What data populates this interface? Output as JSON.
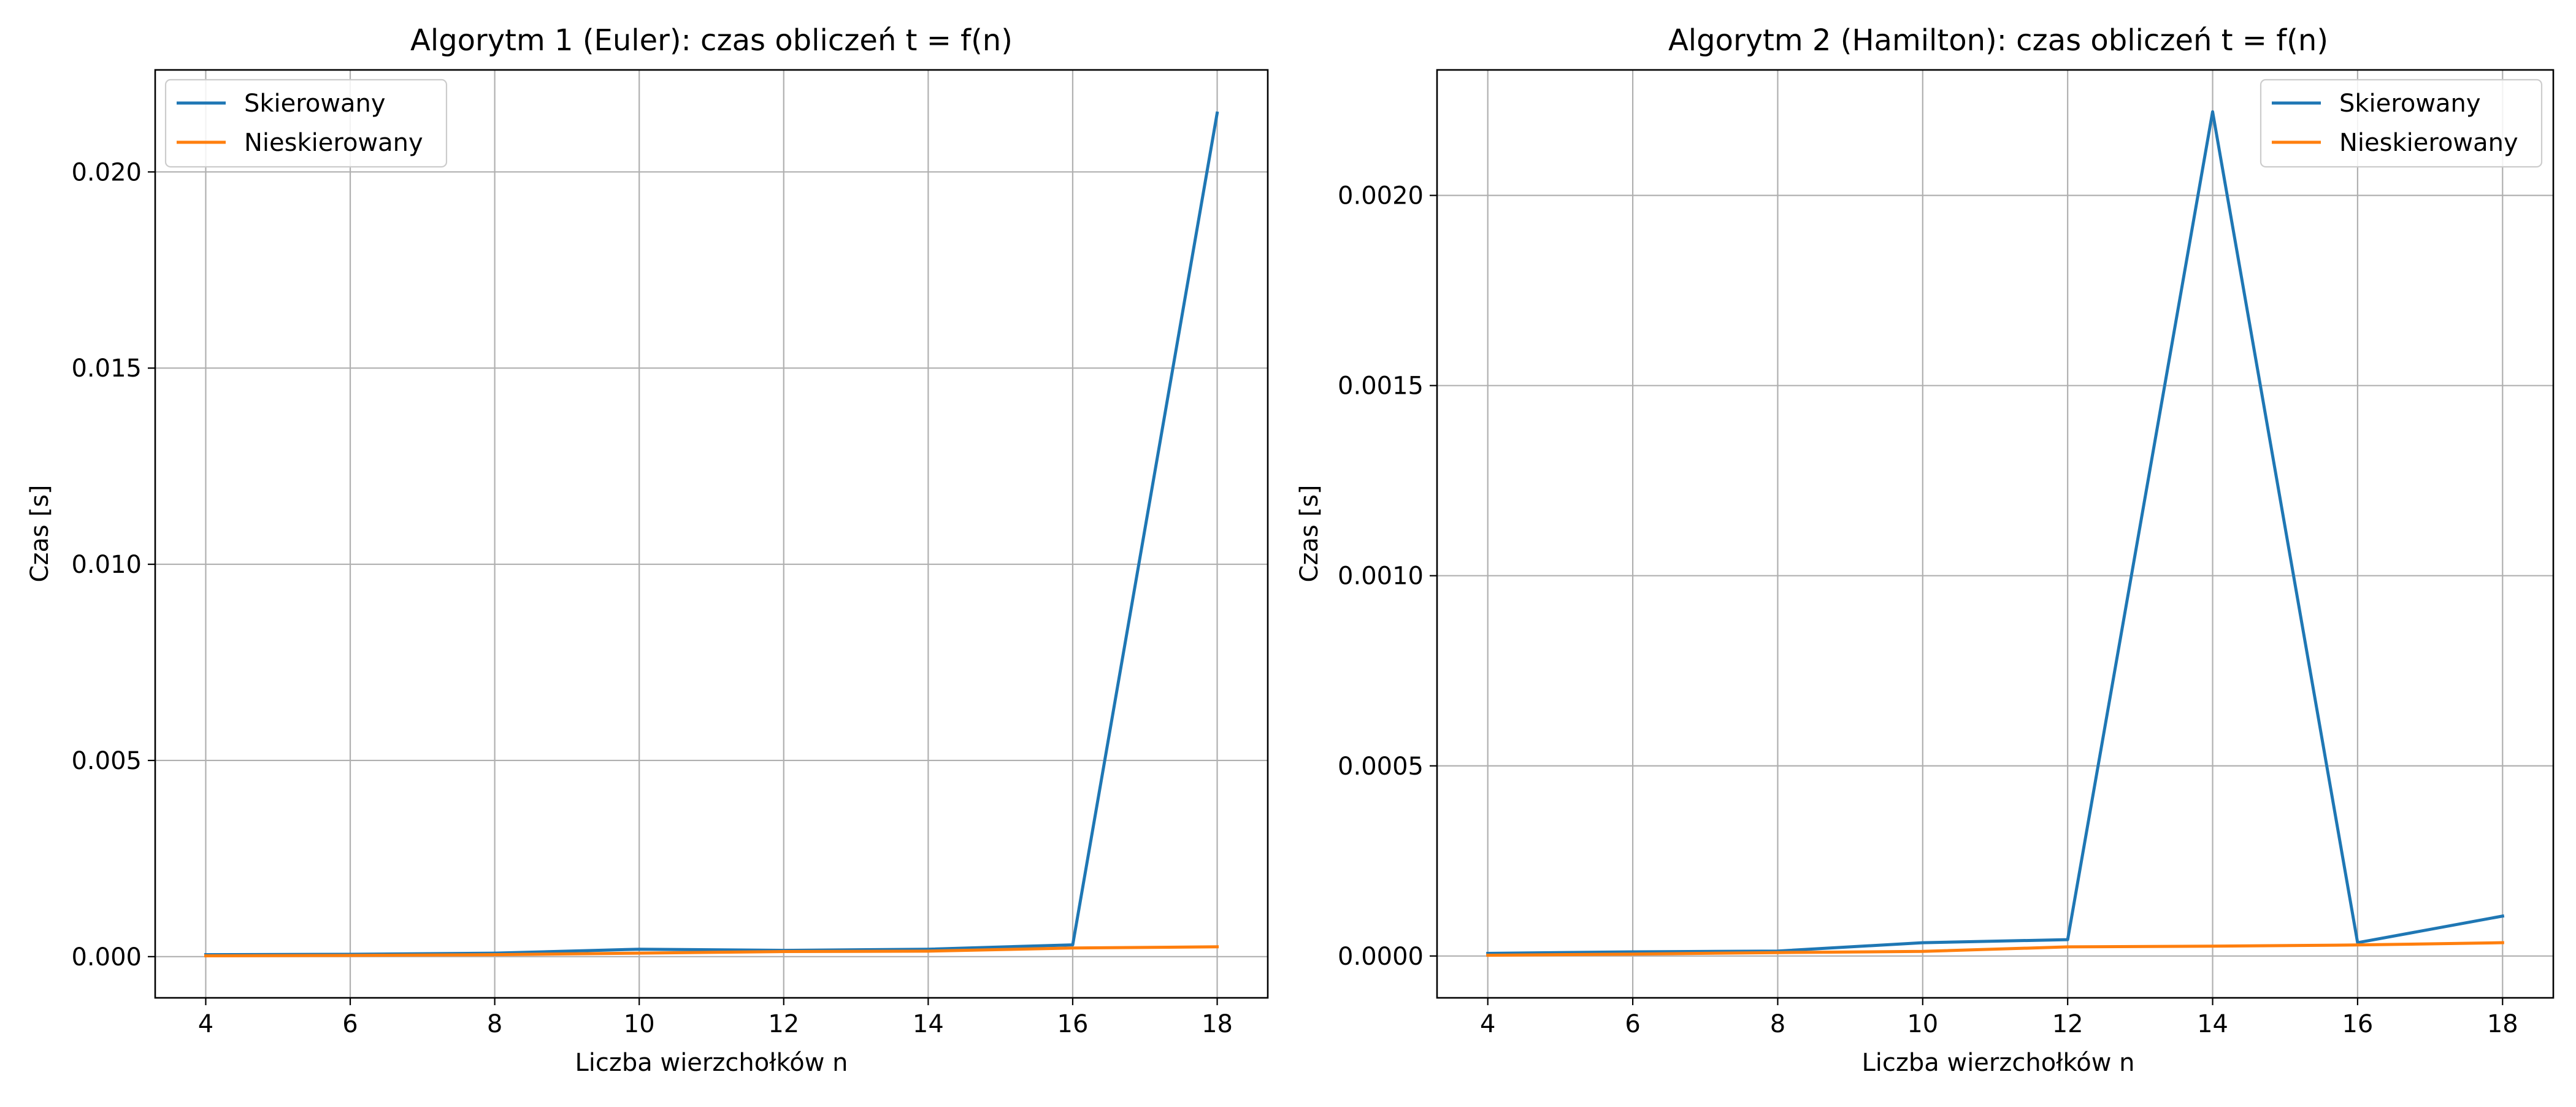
{
  "chart_data": [
    {
      "type": "line",
      "title": "Algorytm 1 (Euler): czas obliczeń t = f(n)",
      "xlabel": "Liczba wierzchołków n",
      "ylabel": "Czas [s]",
      "x": [
        4,
        6,
        8,
        10,
        12,
        14,
        16,
        18
      ],
      "xlim": [
        3.3,
        18.7
      ],
      "ylim": [
        -0.00105,
        0.0226
      ],
      "xticks": [
        4,
        6,
        8,
        10,
        12,
        14,
        16,
        18
      ],
      "xtick_labels": [
        "4",
        "6",
        "8",
        "10",
        "12",
        "14",
        "16",
        "18"
      ],
      "yticks": [
        0.0,
        0.005,
        0.01,
        0.015,
        0.02
      ],
      "ytick_labels": [
        "0.000",
        "0.005",
        "0.010",
        "0.015",
        "0.020"
      ],
      "grid": true,
      "legend_position": "upper-left",
      "series": [
        {
          "name": "Skierowany",
          "color": "#1f77b4",
          "values": [
            5e-05,
            6e-05,
            9e-05,
            0.00019,
            0.00016,
            0.00019,
            0.0003,
            0.0215
          ]
        },
        {
          "name": "Nieskierowany",
          "color": "#ff7f0e",
          "values": [
            2e-05,
            3e-05,
            5e-05,
            9e-05,
            0.00013,
            0.00014,
            0.00022,
            0.00025
          ]
        }
      ]
    },
    {
      "type": "line",
      "title": "Algorytm 2 (Hamilton): czas obliczeń t = f(n)",
      "xlabel": "Liczba wierzchołków n",
      "ylabel": "Czas [s]",
      "x": [
        4,
        6,
        8,
        10,
        12,
        14,
        16,
        18
      ],
      "xlim": [
        3.3,
        18.7
      ],
      "ylim": [
        -0.00011,
        0.00233
      ],
      "xticks": [
        4,
        6,
        8,
        10,
        12,
        14,
        16,
        18
      ],
      "xtick_labels": [
        "4",
        "6",
        "8",
        "10",
        "12",
        "14",
        "16",
        "18"
      ],
      "yticks": [
        0.0,
        0.0005,
        0.001,
        0.0015,
        0.002
      ],
      "ytick_labels": [
        "0.0000",
        "0.0005",
        "0.0010",
        "0.0015",
        "0.0020"
      ],
      "grid": true,
      "legend_position": "upper-right",
      "series": [
        {
          "name": "Skierowany",
          "color": "#1f77b4",
          "values": [
            7e-06,
            1.1e-05,
            1.3e-05,
            3.5e-05,
            4.3e-05,
            0.00222,
            3.5e-05,
            0.000105
          ]
        },
        {
          "name": "Nieskierowany",
          "color": "#ff7f0e",
          "values": [
            2e-06,
            5e-06,
            9e-06,
            1.2e-05,
            2.4e-05,
            2.6e-05,
            2.9e-05,
            3.5e-05
          ]
        }
      ]
    }
  ]
}
